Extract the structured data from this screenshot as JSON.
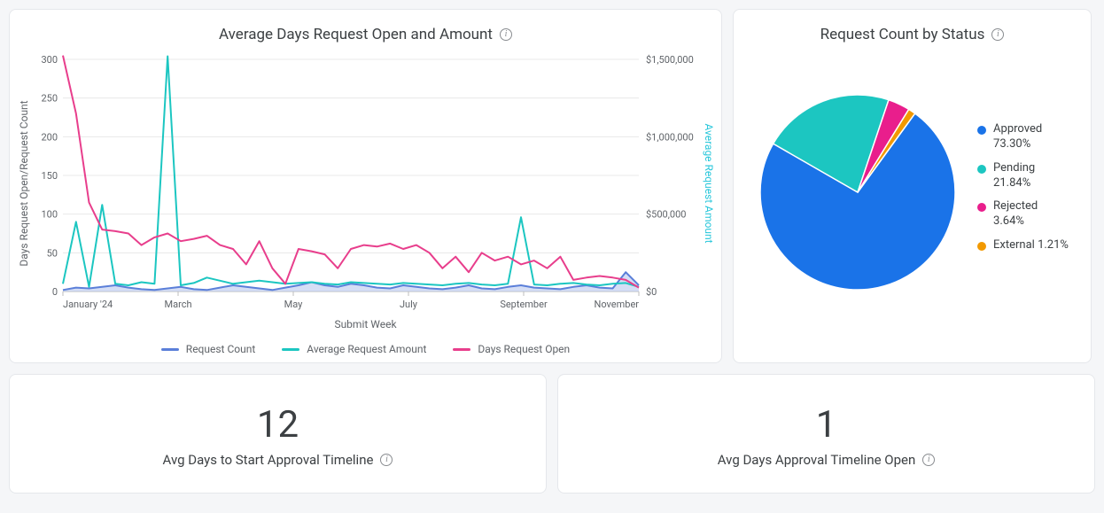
{
  "line_chart": {
    "title": "Average Days Request Open and Amount",
    "type": "line",
    "x_axis_label": "Submit Week",
    "y_axis_left_label": "Days Request Open/Request Count",
    "y_axis_right_label": "Average Request Amount",
    "x_tick_labels": [
      "January '24",
      "March",
      "May",
      "July",
      "September",
      "November"
    ],
    "x_tick_positions": [
      0,
      0.2,
      0.4,
      0.6,
      0.8,
      1.0
    ],
    "y_left_ticks": [
      0,
      50,
      100,
      150,
      200,
      250,
      300
    ],
    "y_left_lim": [
      0,
      300
    ],
    "y_right_ticks": [
      "$0",
      "$500,000",
      "$1,000,000",
      "$1,500,000"
    ],
    "y_right_lim": [
      0,
      1500000
    ],
    "grid_color": "#e8e8e8",
    "axis_color": "#bdbdbd",
    "background_color": "#ffffff",
    "series": [
      {
        "name": "Request Count",
        "color": "#5b7fd9",
        "fill": "#b9c8ef",
        "fill_opacity": 0.6,
        "line_width": 2,
        "y_axis": "left",
        "values": [
          2,
          5,
          4,
          6,
          8,
          5,
          3,
          2,
          4,
          6,
          3,
          2,
          5,
          8,
          6,
          4,
          2,
          5,
          8,
          12,
          8,
          6,
          10,
          8,
          5,
          4,
          8,
          6,
          4,
          3,
          5,
          8,
          4,
          3,
          6,
          8,
          5,
          4,
          3,
          6,
          8,
          5,
          4,
          25,
          8
        ]
      },
      {
        "name": "Average Request Amount",
        "color": "#1cc6c1",
        "line_width": 2,
        "y_axis": "right",
        "values": [
          50000,
          450000,
          30000,
          560000,
          50000,
          40000,
          60000,
          50000,
          1520000,
          40000,
          55000,
          90000,
          70000,
          50000,
          60000,
          70000,
          60000,
          50000,
          55000,
          60000,
          50000,
          45000,
          60000,
          55000,
          50000,
          45000,
          55000,
          50000,
          45000,
          40000,
          50000,
          55000,
          45000,
          40000,
          50000,
          480000,
          45000,
          40000,
          50000,
          55000,
          45000,
          40000,
          50000,
          55000,
          30000
        ]
      },
      {
        "name": "Days Request Open",
        "color": "#e83e8c",
        "line_width": 2,
        "y_axis": "left",
        "values": [
          305,
          230,
          115,
          80,
          78,
          75,
          60,
          70,
          75,
          65,
          68,
          72,
          60,
          55,
          35,
          65,
          30,
          10,
          55,
          52,
          48,
          30,
          55,
          60,
          58,
          62,
          55,
          60,
          50,
          30,
          45,
          25,
          50,
          40,
          45,
          35,
          40,
          30,
          45,
          15,
          18,
          20,
          18,
          15,
          5
        ]
      }
    ],
    "legend_labels": [
      "Request Count",
      "Average Request Amount",
      "Days Request Open"
    ]
  },
  "pie_chart": {
    "title": "Request Count by Status",
    "type": "pie",
    "background_color": "#ffffff",
    "stroke_color": "#ffffff",
    "stroke_width": 1.5,
    "start_angle_deg": -54,
    "slices": [
      {
        "label": "Approved",
        "value": 73.3,
        "color": "#1a73e8",
        "pct_label": "73.30%"
      },
      {
        "label": "Pending",
        "value": 21.84,
        "color": "#1cc6c1",
        "pct_label": "21.84%"
      },
      {
        "label": "Rejected",
        "value": 3.64,
        "color": "#e91e8c",
        "pct_label": "3.64%"
      },
      {
        "label": "External",
        "value": 1.21,
        "color": "#f29900",
        "pct_label": "1.21%"
      }
    ]
  },
  "metric_left": {
    "value": "12",
    "label": "Avg Days to Start Approval Timeline",
    "value_fontsize": 42,
    "label_fontsize": 15,
    "value_color": "#3c4043",
    "label_color": "#3c4043"
  },
  "metric_right": {
    "value": "1",
    "label": "Avg Days Approval Timeline Open",
    "value_fontsize": 42,
    "label_fontsize": 15,
    "value_color": "#3c4043",
    "label_color": "#3c4043"
  }
}
